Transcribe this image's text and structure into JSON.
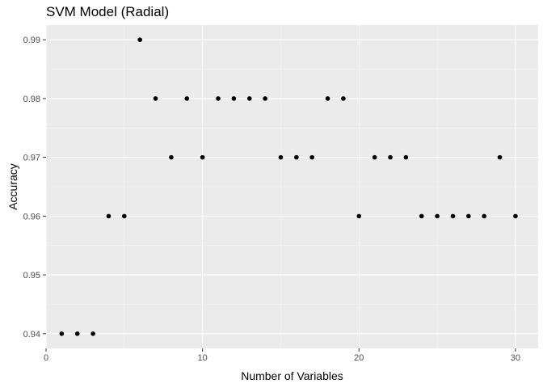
{
  "chart_data": {
    "type": "scatter",
    "title": "SVM Model (Radial)",
    "xlabel": "Number of Variables",
    "ylabel": "Accuracy",
    "xlim": [
      0,
      31.45
    ],
    "ylim": [
      0.9375,
      0.9925
    ],
    "x_ticks": [
      0,
      10,
      20,
      30
    ],
    "x_tick_labels": [
      "0",
      "10",
      "20",
      "30"
    ],
    "y_ticks": [
      0.94,
      0.95,
      0.96,
      0.97,
      0.98,
      0.99
    ],
    "y_tick_labels": [
      "0.94",
      "0.95",
      "0.96",
      "0.97",
      "0.98",
      "0.99"
    ],
    "x": [
      1,
      2,
      3,
      4,
      5,
      6,
      7,
      8,
      9,
      10,
      11,
      12,
      13,
      14,
      15,
      16,
      17,
      18,
      19,
      20,
      21,
      22,
      23,
      24,
      25,
      26,
      27,
      28,
      29,
      30
    ],
    "y": [
      0.94,
      0.94,
      0.94,
      0.96,
      0.96,
      0.99,
      0.98,
      0.97,
      0.98,
      0.97,
      0.98,
      0.98,
      0.98,
      0.98,
      0.97,
      0.97,
      0.97,
      0.98,
      0.98,
      0.96,
      0.97,
      0.97,
      0.97,
      0.96,
      0.96,
      0.96,
      0.96,
      0.96,
      0.97,
      0.96
    ],
    "grid": true,
    "colors": {
      "panel": "#ebebeb",
      "grid_major": "#ffffff",
      "grid_minor": "#f5f5f5",
      "point": "#000000"
    }
  }
}
